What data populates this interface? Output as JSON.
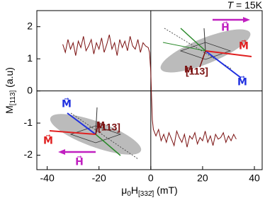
{
  "chart_data": {
    "type": "line",
    "title": {
      "italic": "T",
      "rest": " = 15K"
    },
    "xlabel": {
      "mu": "μ",
      "mu_sub": "0",
      "main": "H",
      "sub": "[332̄]",
      "unit": " (mT)"
    },
    "ylabel": {
      "main": "M",
      "sub": "[113]",
      "unit": " (a.u)"
    },
    "x": [
      -34,
      -33,
      -32,
      -31,
      -30,
      -29,
      -28,
      -27,
      -26,
      -25,
      -24,
      -23,
      -22,
      -21,
      -20,
      -19,
      -18,
      -17,
      -16,
      -15,
      -14,
      -13,
      -12,
      -11,
      -10,
      -9,
      -8,
      -7,
      -6,
      -5,
      -4,
      -3,
      -2,
      -1,
      -0.5,
      0,
      0.3,
      0.6,
      1,
      2,
      3,
      4,
      5,
      6,
      7,
      8,
      9,
      10,
      11,
      12,
      13,
      14,
      15,
      16,
      17,
      18,
      19,
      20,
      21,
      22,
      23,
      24,
      25,
      26,
      27,
      28,
      29,
      30,
      31,
      32,
      33
    ],
    "series": [
      {
        "color": "#7a1010",
        "values": [
          1.45,
          1.2,
          1.6,
          1.3,
          1.5,
          1.1,
          1.55,
          1.35,
          1.7,
          1.25,
          1.4,
          1.6,
          1.15,
          1.5,
          1.3,
          1.65,
          1.2,
          1.45,
          1.75,
          1.3,
          1.5,
          1.1,
          1.6,
          1.35,
          1.55,
          1.25,
          1.7,
          1.4,
          1.3,
          1.6,
          1.2,
          1.5,
          1.4,
          1.35,
          1.2,
          0.6,
          -0.2,
          -0.9,
          -1.2,
          -1.4,
          -1.2,
          -1.55,
          -1.35,
          -1.6,
          -1.3,
          -1.5,
          -1.7,
          -1.25,
          -1.45,
          -1.6,
          -1.35,
          -1.75,
          -1.4,
          -1.5,
          -1.3,
          -1.65,
          -1.45,
          -1.55,
          -1.25,
          -1.6,
          -1.4,
          -1.7,
          -1.35,
          -1.5,
          -1.45,
          -1.3,
          -1.6,
          -1.4,
          -1.55,
          -1.35,
          -1.5
        ]
      }
    ],
    "xlim": [
      -44,
      43
    ],
    "ylim": [
      -2.45,
      2.5
    ],
    "xticks": [
      -40,
      -20,
      0,
      20,
      40
    ],
    "yticks": [
      -2,
      -1,
      0,
      1,
      2
    ],
    "annotations": [
      {
        "text": "H⃗",
        "color": "#c020c0"
      },
      {
        "text": "M⃗",
        "color": "#e02020"
      },
      {
        "text": "M",
        "color": "#7a1010"
      },
      {
        "text": "[113]",
        "color": "#7a1010"
      },
      {
        "text": "M⃗",
        "color": "#2030e0"
      },
      {
        "text": "M⃗",
        "color": "#2030e0"
      },
      {
        "text": "M",
        "color": "#7a1010"
      },
      {
        "text": "[113]",
        "color": "#7a1010"
      },
      {
        "text": "M⃗",
        "color": "#e02020"
      },
      {
        "text": "H⃗",
        "color": "#c020c0"
      }
    ]
  }
}
